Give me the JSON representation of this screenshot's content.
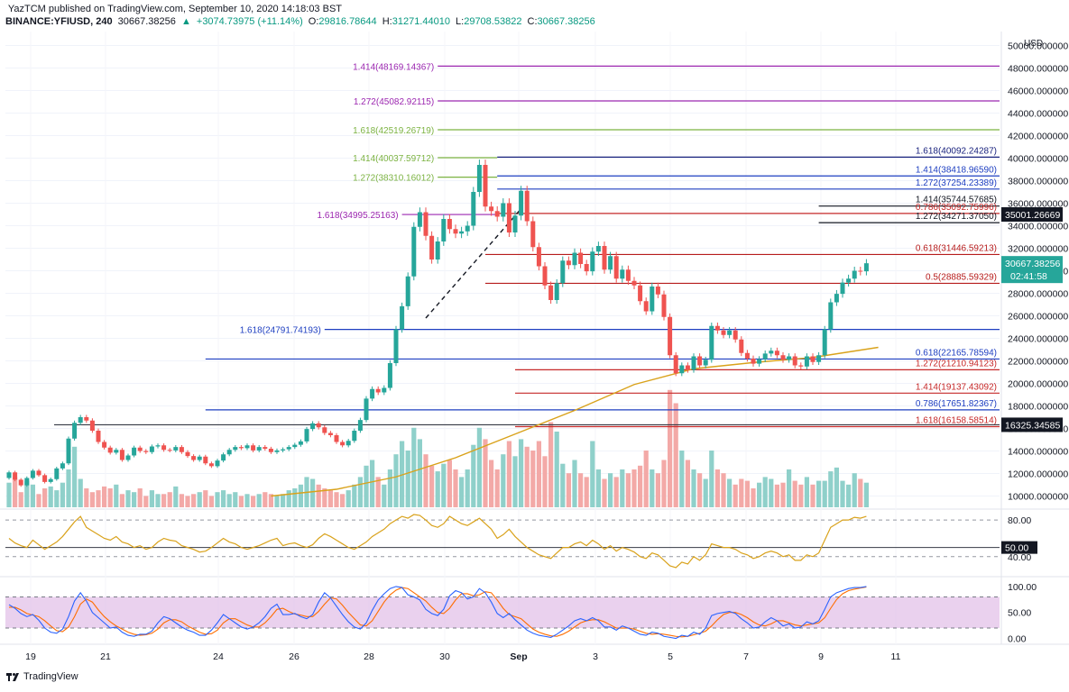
{
  "header": {
    "publish_line": "YazTCM published on TradingView.com, September 10, 2020 14:18:03 BST",
    "symbol": "BINANCE:YFIUSD, 240",
    "last": "30667.38256",
    "change": "+3074.73975 (+11.14%)",
    "o_label": "O:",
    "o_value": "29816.78644",
    "h_label": "H:",
    "h_value": "31271.44010",
    "l_label": "L:",
    "l_value": "29708.53822",
    "c_label": "C:",
    "c_value": "30667.38256",
    "change_icon": "triangle-up-icon"
  },
  "brand": {
    "name": "TradingView",
    "icon": "tradingview-logo-icon"
  },
  "colors": {
    "up": "#26a69a",
    "down": "#ef5350",
    "ma": "#d9a21b",
    "rsi": "#d9a21b",
    "stoch_k": "#2962ff",
    "stoch_d": "#ff6d00",
    "stoch_band": "#e1bee7"
  },
  "chart_data": [
    {
      "type": "candlestick",
      "currency": "USD",
      "y_ticks": [
        "10000.000000",
        "12000.000000",
        "14000.000000",
        "16000.000000",
        "18000.000000",
        "20000.000000",
        "22000.000000",
        "24000.000000",
        "26000.000000",
        "28000.000000",
        "30000.000000",
        "32000.000000",
        "34000.000000",
        "36000.000000",
        "38000.000000",
        "40000.000000",
        "42000.000000",
        "44000.000000",
        "46000.000000",
        "48000.000000",
        "50000.000000"
      ],
      "ylim": [
        9000,
        51000
      ],
      "x_ticks": [
        "19",
        "21",
        "24",
        "26",
        "28",
        "30",
        "Sep",
        "3",
        "5",
        "7",
        "9",
        "11"
      ],
      "price_label": "30667.38256",
      "countdown_label": "02:41:58",
      "marked_levels": [
        {
          "label": "35001.26669",
          "value": 35001
        },
        {
          "label": "16325.34585",
          "value": 16325
        }
      ],
      "closes": [
        12100,
        11450,
        10950,
        11600,
        12250,
        11850,
        11250,
        11500,
        12450,
        12900,
        15100,
        16500,
        17000,
        16700,
        15800,
        14800,
        14300,
        13850,
        14100,
        13200,
        13600,
        14300,
        14000,
        13900,
        14400,
        14500,
        14100,
        14050,
        14350,
        13900,
        13550,
        13200,
        13500,
        12900,
        12650,
        13150,
        13700,
        14100,
        14350,
        14250,
        14500,
        14050,
        14350,
        14200,
        13900,
        14050,
        14150,
        14350,
        14550,
        14850,
        15950,
        16450,
        16100,
        15600,
        15400,
        14800,
        14500,
        14900,
        15800,
        16750,
        18650,
        19500,
        19200,
        19600,
        21800,
        24800,
        26850,
        29500,
        33900,
        35200,
        33100,
        31000,
        32600,
        34600,
        33700,
        33300,
        33500,
        34000,
        37000,
        39400,
        35700,
        35300,
        34800,
        36000,
        33400,
        34900,
        37100,
        34400,
        32100,
        30400,
        28700,
        27400,
        28900,
        30900,
        30500,
        31600,
        30600,
        29950,
        31700,
        32200,
        30100,
        31300,
        29300,
        30100,
        29100,
        28700,
        27300,
        26400,
        28600,
        27900,
        25900,
        22500,
        20900,
        21600,
        21200,
        22400,
        21600,
        22100,
        25100,
        24700,
        24300,
        24700,
        23900,
        22700,
        22200,
        21750,
        22150,
        22650,
        22900,
        22500,
        22100,
        22400,
        21600,
        21500,
        22400,
        21900,
        22500,
        24800,
        27200,
        27950,
        28950,
        29300,
        30000,
        29950,
        30667
      ],
      "volume_relative": [
        0.13,
        0.16,
        0.08,
        0.14,
        0.12,
        0.07,
        0.1,
        0.11,
        0.09,
        0.13,
        0.2,
        0.32,
        0.15,
        0.1,
        0.08,
        0.09,
        0.11,
        0.1,
        0.12,
        0.07,
        0.09,
        0.08,
        0.1,
        0.06,
        0.09,
        0.07,
        0.07,
        0.08,
        0.11,
        0.07,
        0.06,
        0.07,
        0.08,
        0.09,
        0.06,
        0.08,
        0.09,
        0.07,
        0.08,
        0.06,
        0.07,
        0.06,
        0.07,
        0.08,
        0.07,
        0.06,
        0.07,
        0.09,
        0.1,
        0.12,
        0.16,
        0.15,
        0.12,
        0.1,
        0.09,
        0.08,
        0.07,
        0.09,
        0.12,
        0.16,
        0.22,
        0.25,
        0.16,
        0.12,
        0.2,
        0.28,
        0.35,
        0.3,
        0.42,
        0.36,
        0.28,
        0.22,
        0.19,
        0.23,
        0.25,
        0.2,
        0.16,
        0.2,
        0.33,
        0.42,
        0.36,
        0.25,
        0.2,
        0.28,
        0.35,
        0.27,
        0.36,
        0.32,
        0.3,
        0.35,
        0.27,
        0.45,
        0.4,
        0.23,
        0.18,
        0.25,
        0.18,
        0.16,
        0.35,
        0.2,
        0.15,
        0.18,
        0.16,
        0.2,
        0.18,
        0.2,
        0.22,
        0.3,
        0.2,
        0.18,
        0.25,
        0.62,
        0.55,
        0.3,
        0.25,
        0.2,
        0.18,
        0.15,
        0.3,
        0.2,
        0.18,
        0.15,
        0.12,
        0.15,
        0.14,
        0.1,
        0.13,
        0.16,
        0.15,
        0.12,
        0.13,
        0.2,
        0.14,
        0.12,
        0.16,
        0.12,
        0.14,
        0.14,
        0.19,
        0.21,
        0.14,
        0.12,
        0.18,
        0.15,
        0.13
      ],
      "ma_line": [
        [
          44,
          10000
        ],
        [
          55,
          10600
        ],
        [
          65,
          11700
        ],
        [
          75,
          13400
        ],
        [
          85,
          15500
        ],
        [
          95,
          17600
        ],
        [
          105,
          19900
        ],
        [
          115,
          21300
        ],
        [
          125,
          21850
        ],
        [
          135,
          22300
        ],
        [
          146,
          23200
        ]
      ],
      "fib_levels": [
        {
          "label": "1.414(48169.14367)",
          "value": 48169,
          "color": "#9c27b0",
          "from": 72,
          "to": 146,
          "side": "left"
        },
        {
          "label": "1.272(45082.92115)",
          "value": 45083,
          "color": "#9c27b0",
          "from": 72,
          "to": 146,
          "side": "left"
        },
        {
          "label": "1.618(42519.26719)",
          "value": 42519,
          "color": "#7cb342",
          "from": 72,
          "to": 146,
          "side": "left"
        },
        {
          "label": "1.414(40037.59712)",
          "value": 40038,
          "color": "#7cb342",
          "from": 72,
          "to": 82,
          "side": "left"
        },
        {
          "label": "1.272(38310.16012)",
          "value": 38310,
          "color": "#7cb342",
          "from": 72,
          "to": 82,
          "side": "left"
        },
        {
          "label": "1.618(34995.25163)",
          "value": 34995,
          "color": "#9c27b0",
          "from": 66,
          "to": 82,
          "side": "left"
        },
        {
          "label": "1.618(24791.74193)",
          "value": 24792,
          "color": "#1e3fc1",
          "from": 53,
          "to": 146,
          "side": "left"
        },
        {
          "label": "1.618(40092.24287)",
          "value": 40092,
          "color": "#1a237e",
          "from": 82,
          "to": 146,
          "side": "right"
        },
        {
          "label": "1.414(38418.96590)",
          "value": 38419,
          "color": "#1e3fc1",
          "from": 82,
          "to": 146,
          "side": "right"
        },
        {
          "label": "1.272(37254.23389)",
          "value": 37254,
          "color": "#1e3fc1",
          "from": 82,
          "to": 146,
          "side": "right"
        },
        {
          "label": "1.414(35744.57685)",
          "value": 35745,
          "color": "#131722",
          "from": 136,
          "to": 146,
          "side": "right"
        },
        {
          "label": "0.786(35092.75996)",
          "value": 35093,
          "color": "#c62828",
          "from": 82,
          "to": 146,
          "side": "right"
        },
        {
          "label": "1.272(34271.37050)",
          "value": 34271,
          "color": "#131722",
          "from": 136,
          "to": 146,
          "side": "right"
        },
        {
          "label": "0.618(31446.59213)",
          "value": 31447,
          "color": "#b71c1c",
          "from": 80,
          "to": 146,
          "side": "right"
        },
        {
          "label": "0.5(28885.59329)",
          "value": 28886,
          "color": "#b71c1c",
          "from": 80,
          "to": 146,
          "side": "right"
        },
        {
          "label": "0.618(22165.78594)",
          "value": 22166,
          "color": "#1e3fc1",
          "from": 33,
          "to": 146,
          "side": "right"
        },
        {
          "label": "1.272(21210.94123)",
          "value": 21211,
          "color": "#c62828",
          "from": 85,
          "to": 146,
          "side": "right"
        },
        {
          "label": "1.414(19137.43092)",
          "value": 19137,
          "color": "#c62828",
          "from": 85,
          "to": 146,
          "side": "right"
        },
        {
          "label": "0.786(17651.82367)",
          "value": 17652,
          "color": "#1e3fc1",
          "from": 33,
          "to": 146,
          "side": "right"
        },
        {
          "label": "1.618(16158.58514)",
          "value": 16159,
          "color": "#c62828",
          "from": 85,
          "to": 146,
          "side": "right"
        }
      ],
      "trend_line": [
        [
          70,
          25800
        ],
        [
          86,
          35500
        ]
      ],
      "support_line": {
        "value": 16325,
        "from": 8,
        "to": 146
      }
    },
    {
      "type": "line",
      "series": [
        {
          "values": [
            60,
            55,
            52,
            50,
            58,
            53,
            48,
            52,
            56,
            62,
            70,
            78,
            84,
            72,
            68,
            64,
            60,
            58,
            62,
            56,
            54,
            50,
            52,
            48,
            50,
            56,
            60,
            58,
            57,
            52,
            50,
            48,
            45,
            46,
            50,
            55,
            60,
            56,
            54,
            50,
            48,
            50,
            52,
            55,
            58,
            60,
            52,
            54,
            55,
            52,
            50,
            53,
            60,
            65,
            62,
            58,
            54,
            50,
            48,
            52,
            56,
            62,
            66,
            70,
            76,
            80,
            84,
            82,
            86,
            85,
            80,
            74,
            72,
            76,
            84,
            80,
            76,
            74,
            78,
            82,
            76,
            70,
            60,
            64,
            70,
            62,
            56,
            50,
            46,
            42,
            40,
            38,
            44,
            50,
            50,
            54,
            56,
            52,
            58,
            54,
            48,
            52,
            46,
            50,
            48,
            45,
            40,
            38,
            44,
            42,
            36,
            30,
            28,
            34,
            32,
            40,
            36,
            42,
            54,
            52,
            50,
            50,
            48,
            44,
            42,
            38,
            40,
            44,
            46,
            44,
            40,
            42,
            36,
            36,
            42,
            40,
            44,
            58,
            72,
            76,
            80,
            80,
            83,
            82,
            84
          ]
        }
      ],
      "yticks": [
        "80.00",
        "40.00"
      ],
      "ylim": [
        26,
        90
      ],
      "level_label": "50.00",
      "level": 50
    },
    {
      "type": "line",
      "series": [
        {
          "values": [
            65,
            58,
            48,
            42,
            46,
            35,
            20,
            12,
            10,
            18,
            42,
            72,
            88,
            72,
            50,
            40,
            30,
            20,
            22,
            12,
            6,
            4,
            8,
            8,
            14,
            30,
            42,
            38,
            30,
            22,
            16,
            12,
            6,
            6,
            16,
            30,
            46,
            38,
            30,
            22,
            18,
            22,
            30,
            42,
            58,
            66,
            46,
            46,
            48,
            42,
            38,
            46,
            70,
            88,
            78,
            62,
            46,
            32,
            22,
            18,
            30,
            54,
            74,
            86,
            96,
            100,
            98,
            84,
            80,
            74,
            56,
            48,
            44,
            56,
            82,
            92,
            88,
            76,
            80,
            96,
            88,
            70,
            48,
            40,
            48,
            36,
            26,
            16,
            10,
            6,
            4,
            2,
            8,
            16,
            24,
            34,
            38,
            34,
            40,
            34,
            22,
            22,
            16,
            24,
            20,
            14,
            8,
            6,
            12,
            10,
            4,
            2,
            0,
            6,
            4,
            12,
            8,
            20,
            44,
            48,
            50,
            52,
            48,
            38,
            30,
            20,
            22,
            32,
            40,
            34,
            24,
            28,
            20,
            22,
            32,
            28,
            34,
            56,
            80,
            88,
            92,
            96,
            98,
            98,
            100
          ]
        },
        {
          "values": [
            60,
            60,
            55,
            48,
            45,
            42,
            34,
            24,
            15,
            13,
            22,
            42,
            66,
            76,
            70,
            55,
            42,
            32,
            24,
            18,
            12,
            8,
            6,
            7,
            10,
            18,
            30,
            36,
            36,
            32,
            24,
            18,
            12,
            8,
            9,
            16,
            30,
            38,
            38,
            32,
            26,
            22,
            22,
            30,
            42,
            56,
            58,
            52,
            47,
            45,
            42,
            42,
            52,
            66,
            78,
            76,
            64,
            50,
            38,
            26,
            24,
            34,
            52,
            70,
            84,
            93,
            98,
            96,
            88,
            80,
            72,
            60,
            50,
            48,
            58,
            74,
            86,
            86,
            82,
            84,
            90,
            88,
            74,
            58,
            46,
            42,
            38,
            28,
            18,
            12,
            8,
            5,
            4,
            8,
            14,
            22,
            30,
            34,
            36,
            36,
            32,
            26,
            20,
            20,
            20,
            18,
            14,
            10,
            8,
            9,
            8,
            6,
            4,
            3,
            4,
            7,
            10,
            14,
            24,
            36,
            46,
            50,
            50,
            46,
            40,
            32,
            26,
            24,
            28,
            34,
            34,
            30,
            26,
            24,
            26,
            28,
            30,
            40,
            58,
            75,
            86,
            92,
            95,
            97,
            99
          ]
        }
      ],
      "yticks": [
        "100.00",
        "50.00",
        "0.00"
      ],
      "ylim": [
        -6,
        112
      ],
      "band": [
        20,
        80
      ]
    }
  ]
}
